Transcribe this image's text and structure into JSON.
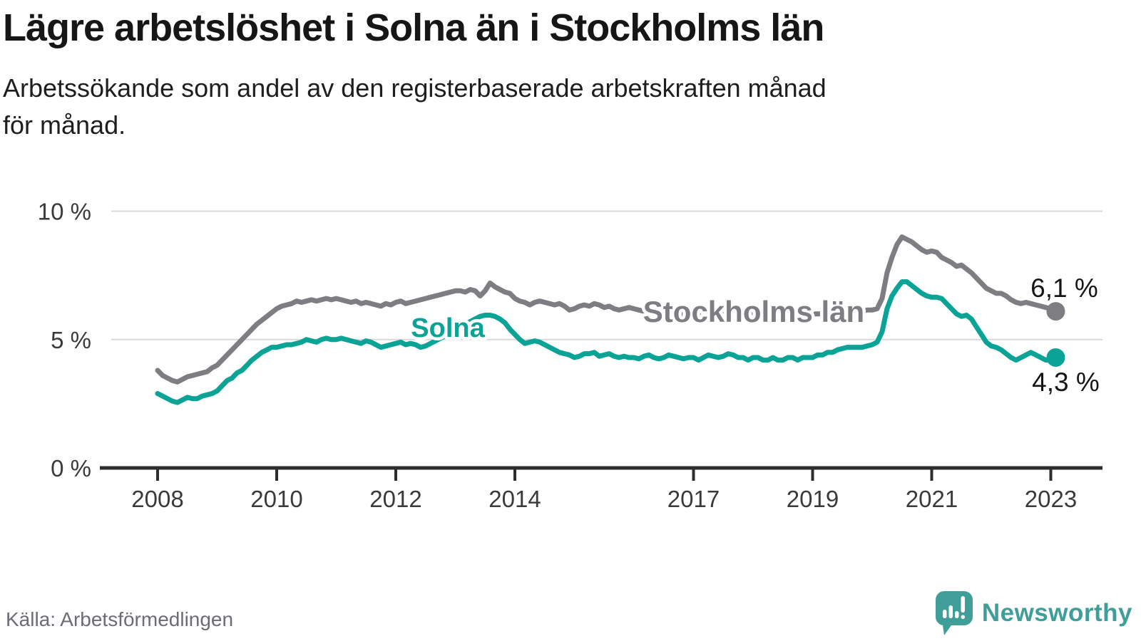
{
  "header": {
    "title": "Lägre arbetslöshet i Solna än i Stockholms län",
    "subtitle": "Arbetssökande som andel av den registerbaserade arbetskraften månad\nför månad."
  },
  "footer": {
    "source": "Källa: Arbetsförmedlingen",
    "brand": "Newsworthy"
  },
  "colors": {
    "solna": "#0aa396",
    "stockholms_lan": "#7d7d82",
    "title_text": "#161616",
    "axis": "#2d2d2d",
    "tick_label": "#3a3a3a",
    "grid": "#d9d9d9",
    "end_label": "#161616",
    "source_text": "#6c6c75",
    "brand_teal": "#3f9f98"
  },
  "chart_data": {
    "type": "line",
    "title": "Lägre arbetslöshet i Solna än i Stockholms län",
    "subtitle": "Arbetssökande som andel av den registerbaserade arbetskraften månad för månad.",
    "unit": "%",
    "x_start": "2008-01",
    "x_end": "2023-02",
    "x_tick_labels": [
      "2008",
      "2010",
      "2012",
      "2014",
      "2017",
      "2019",
      "2021",
      "2023"
    ],
    "y_ticks": [
      {
        "value": 0,
        "label": "0 %"
      },
      {
        "value": 5,
        "label": "5 %"
      },
      {
        "value": 10,
        "label": "10 %"
      }
    ],
    "ylim": [
      0,
      10.5
    ],
    "grid": true,
    "legend_position": "inline-labels",
    "series": [
      {
        "name": "Stockholms län",
        "color": "#7d7d82",
        "end_label": "6,1 %",
        "end_value": 6.1,
        "values": [
          3.8,
          3.6,
          3.5,
          3.4,
          3.35,
          3.45,
          3.55,
          3.6,
          3.65,
          3.7,
          3.75,
          3.9,
          4.0,
          4.2,
          4.4,
          4.6,
          4.8,
          5.0,
          5.2,
          5.4,
          5.6,
          5.75,
          5.9,
          6.05,
          6.2,
          6.3,
          6.35,
          6.4,
          6.5,
          6.45,
          6.5,
          6.55,
          6.5,
          6.55,
          6.6,
          6.55,
          6.6,
          6.55,
          6.5,
          6.45,
          6.5,
          6.4,
          6.45,
          6.4,
          6.35,
          6.3,
          6.4,
          6.35,
          6.45,
          6.5,
          6.4,
          6.45,
          6.5,
          6.55,
          6.6,
          6.65,
          6.7,
          6.75,
          6.8,
          6.85,
          6.9,
          6.9,
          6.85,
          6.95,
          6.9,
          6.7,
          6.9,
          7.2,
          7.05,
          6.95,
          6.85,
          6.8,
          6.6,
          6.5,
          6.45,
          6.35,
          6.45,
          6.5,
          6.45,
          6.4,
          6.35,
          6.4,
          6.3,
          6.15,
          6.2,
          6.3,
          6.35,
          6.3,
          6.4,
          6.35,
          6.25,
          6.3,
          6.2,
          6.15,
          6.2,
          6.25,
          6.2,
          6.15,
          6.1,
          6.05,
          6.0,
          6.0,
          6.1,
          6.1,
          6.0,
          5.95,
          6.0,
          6.0,
          6.0,
          6.0,
          6.0,
          5.95,
          5.9,
          5.9,
          6.0,
          6.05,
          6.0,
          6.0,
          6.0,
          6.05,
          6.05,
          6.0,
          6.0,
          5.9,
          5.9,
          5.9,
          6.0,
          6.0,
          5.9,
          5.9,
          5.95,
          6.0,
          6.0,
          6.0,
          6.0,
          6.0,
          6.05,
          6.1,
          6.15,
          6.2,
          6.1,
          6.1,
          6.1,
          6.15,
          6.15,
          6.2,
          6.6,
          7.6,
          8.2,
          8.7,
          9.0,
          8.9,
          8.8,
          8.65,
          8.5,
          8.4,
          8.45,
          8.4,
          8.2,
          8.1,
          8.0,
          7.85,
          7.9,
          7.75,
          7.6,
          7.4,
          7.2,
          7.0,
          6.9,
          6.8,
          6.8,
          6.7,
          6.55,
          6.45,
          6.4,
          6.45,
          6.4,
          6.35,
          6.3,
          6.25,
          6.2,
          6.1
        ]
      },
      {
        "name": "Solna",
        "color": "#0aa396",
        "end_label": "4,3 %",
        "end_value": 4.3,
        "values": [
          2.9,
          2.8,
          2.7,
          2.6,
          2.55,
          2.65,
          2.75,
          2.7,
          2.7,
          2.8,
          2.85,
          2.9,
          3.0,
          3.2,
          3.4,
          3.5,
          3.7,
          3.8,
          4.0,
          4.2,
          4.35,
          4.5,
          4.6,
          4.7,
          4.7,
          4.75,
          4.8,
          4.8,
          4.85,
          4.9,
          5.0,
          4.95,
          4.9,
          5.0,
          5.05,
          5.0,
          5.0,
          5.05,
          5.0,
          4.95,
          4.9,
          4.85,
          4.95,
          4.9,
          4.8,
          4.7,
          4.75,
          4.8,
          4.85,
          4.9,
          4.8,
          4.85,
          4.8,
          4.7,
          4.75,
          4.85,
          4.95,
          5.05,
          5.15,
          5.3,
          5.4,
          5.5,
          5.6,
          5.7,
          5.8,
          5.9,
          5.95,
          5.95,
          5.9,
          5.8,
          5.65,
          5.4,
          5.2,
          5.0,
          4.85,
          4.9,
          4.95,
          4.9,
          4.8,
          4.7,
          4.6,
          4.5,
          4.45,
          4.4,
          4.3,
          4.35,
          4.45,
          4.45,
          4.5,
          4.35,
          4.4,
          4.45,
          4.35,
          4.3,
          4.35,
          4.3,
          4.3,
          4.25,
          4.35,
          4.4,
          4.3,
          4.25,
          4.3,
          4.4,
          4.35,
          4.3,
          4.25,
          4.3,
          4.3,
          4.2,
          4.3,
          4.4,
          4.35,
          4.3,
          4.35,
          4.45,
          4.4,
          4.3,
          4.3,
          4.2,
          4.3,
          4.3,
          4.2,
          4.2,
          4.3,
          4.2,
          4.2,
          4.3,
          4.3,
          4.2,
          4.3,
          4.3,
          4.3,
          4.4,
          4.4,
          4.5,
          4.5,
          4.6,
          4.65,
          4.7,
          4.7,
          4.7,
          4.7,
          4.75,
          4.8,
          4.9,
          5.3,
          6.2,
          6.7,
          7.0,
          7.25,
          7.25,
          7.1,
          6.95,
          6.8,
          6.7,
          6.65,
          6.65,
          6.6,
          6.4,
          6.2,
          6.0,
          5.9,
          5.95,
          5.8,
          5.5,
          5.2,
          4.9,
          4.75,
          4.7,
          4.6,
          4.45,
          4.3,
          4.2,
          4.3,
          4.4,
          4.5,
          4.4,
          4.3,
          4.2,
          4.2,
          4.3
        ]
      }
    ]
  }
}
